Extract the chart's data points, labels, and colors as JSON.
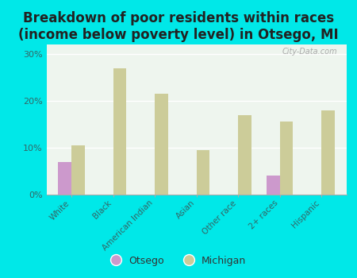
{
  "title": "Breakdown of poor residents within races\n(income below poverty level) in Otsego, MI",
  "categories": [
    "White",
    "Black",
    "American Indian",
    "Asian",
    "Other race",
    "2+ races",
    "Hispanic"
  ],
  "otsego_values": [
    7.0,
    0,
    0,
    0,
    0,
    4.0,
    0
  ],
  "michigan_values": [
    10.5,
    27.0,
    21.5,
    9.5,
    17.0,
    15.5,
    18.0
  ],
  "otsego_color": "#cc99cc",
  "michigan_color": "#cccc99",
  "background_color": "#00e8e8",
  "plot_bg": "#eef5ee",
  "ylim": [
    0,
    32
  ],
  "yticks": [
    0,
    10,
    20,
    30
  ],
  "ytick_labels": [
    "0%",
    "10%",
    "20%",
    "30%"
  ],
  "title_fontsize": 12,
  "legend_label_otsego": "Otsego",
  "legend_label_michigan": "Michigan",
  "bar_width": 0.32
}
